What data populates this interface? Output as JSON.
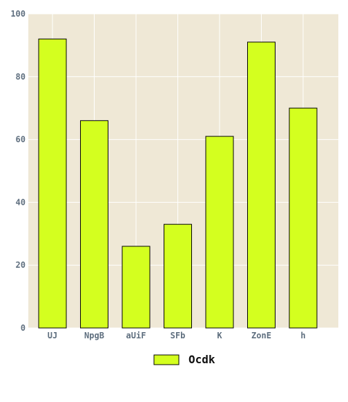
{
  "chart_data": {
    "type": "bar",
    "categories": [
      "UJ",
      "NpgB",
      "aUiF",
      "SFb",
      "K",
      "ZonE",
      "h"
    ],
    "series": [
      {
        "name": "Ocdk",
        "values": [
          92,
          66,
          26,
          33,
          61,
          91,
          70
        ],
        "color": "#d4ff1f"
      }
    ],
    "title": "",
    "xlabel": "",
    "ylabel": "",
    "ylim": [
      0,
      100
    ],
    "yticks": [
      0,
      20,
      40,
      60,
      80,
      100
    ],
    "grid": true,
    "legend_position": "bottom-center",
    "colors": {
      "plot_background": "#efe8d6",
      "grid": "#ffffff",
      "bar_edge": "#000000",
      "tick_text": "#5f6f7f"
    }
  }
}
